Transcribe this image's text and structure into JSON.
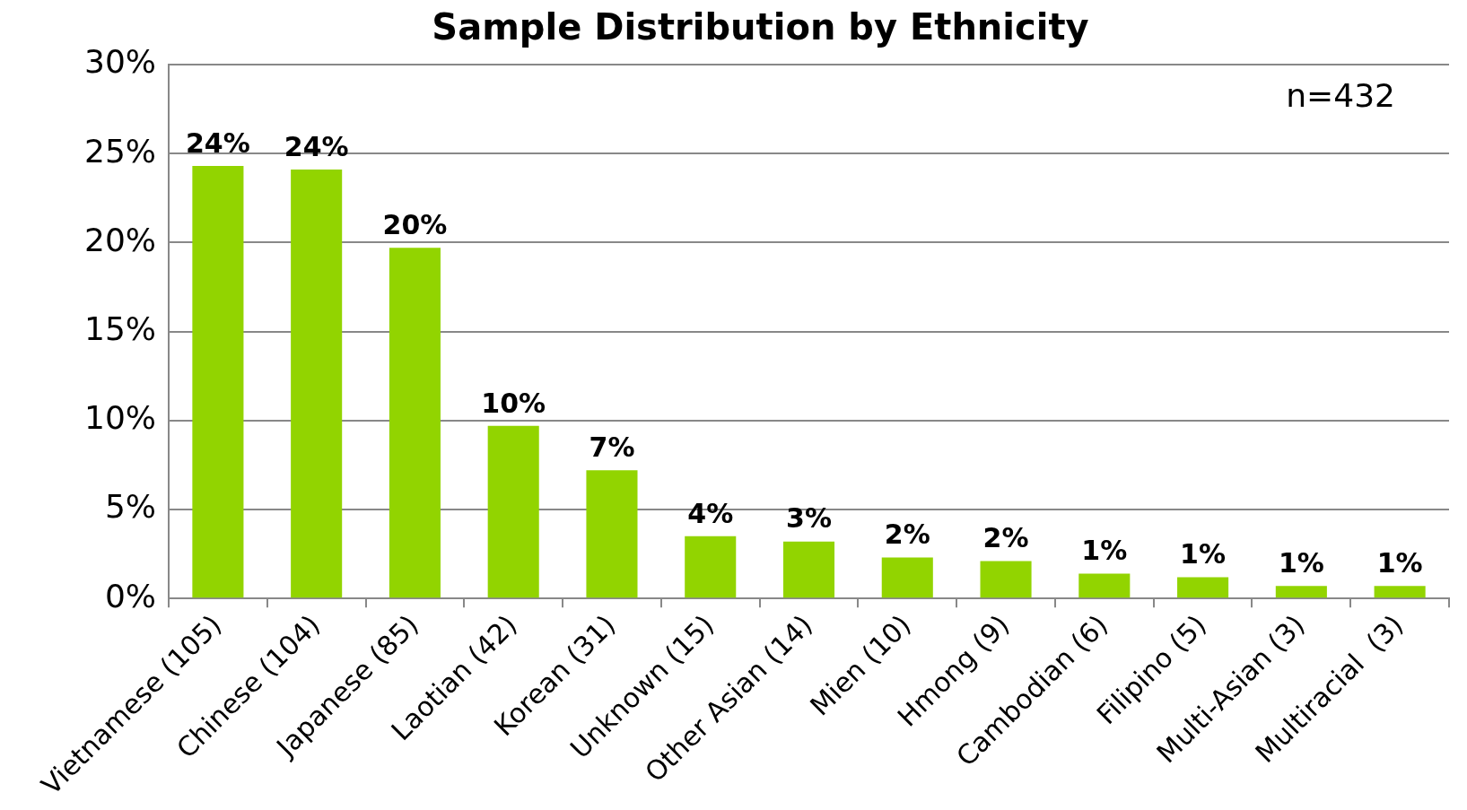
{
  "chart_data": {
    "type": "bar",
    "title": "Sample Distribution by Ethnicity",
    "categories": [
      "Vietnamese (105)",
      "Chinese (104)",
      "Japanese (85)",
      "Laotian (42)",
      "Korean (31)",
      "Unknown (15)",
      "Other Asian (14)",
      "Mien (10)",
      "Hmong (9)",
      "Cambodian (6)",
      "Filipino (5)",
      "Multi-Asian (3)",
      "Multiracial  (3)"
    ],
    "values": [
      24.3,
      24.1,
      19.7,
      9.7,
      7.2,
      3.5,
      3.2,
      2.3,
      2.1,
      1.4,
      1.2,
      0.7,
      0.7
    ],
    "value_labels": [
      "24%",
      "24%",
      "20%",
      "10%",
      "7%",
      "4%",
      "3%",
      "2%",
      "2%",
      "1%",
      "1%",
      "1%",
      "1%"
    ],
    "color": "#92d400",
    "ylim": [
      0,
      30
    ],
    "yticks": [
      {
        "value": 0,
        "label": "0%"
      },
      {
        "value": 5,
        "label": "5%"
      },
      {
        "value": 10,
        "label": "10%"
      },
      {
        "value": 15,
        "label": "15%"
      },
      {
        "value": 20,
        "label": "20%"
      },
      {
        "value": 25,
        "label": "25%"
      },
      {
        "value": 30,
        "label": "30%"
      }
    ],
    "grid": "y",
    "legend": false,
    "annotations": [
      "n=432"
    ]
  }
}
